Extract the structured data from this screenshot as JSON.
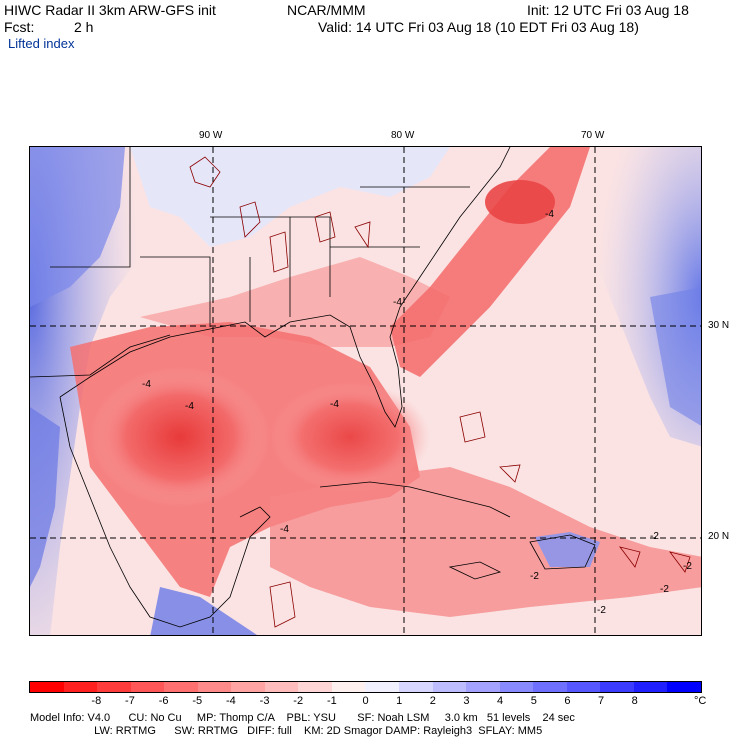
{
  "header": {
    "model_title": "HIWC Radar II 3km ARW-GFS init",
    "org": "NCAR/MMM",
    "init": "Init: 12 UTC Fri 03 Aug 18",
    "fcst_label": "Fcst:",
    "fcst_value": "2 h",
    "valid": "Valid: 14 UTC Fri 03 Aug 18 (10 EDT Fri 03 Aug 18)",
    "field_name": "Lifted index"
  },
  "map": {
    "lon_labels": [
      "90 W",
      "80 W",
      "70 W"
    ],
    "lat_labels": [
      "30 N",
      "20 N"
    ],
    "contour_labels": [
      "-4",
      "-4",
      "-4",
      "-4",
      "-4",
      "-4",
      "-2",
      "-2",
      "-2",
      "-2",
      "-2"
    ],
    "colors": {
      "ocean_neutral": "#fde0e0",
      "stable_blue": "#6f7fe8",
      "unstable_red": "#f25a5a",
      "strong_red": "#e83030"
    }
  },
  "colorbar": {
    "ticks": [
      "-8",
      "-7",
      "-6",
      "-5",
      "-4",
      "-3",
      "-2",
      "-1",
      "0",
      "1",
      "2",
      "3",
      "4",
      "5",
      "6",
      "7",
      "8"
    ],
    "unit": "°C",
    "colors": [
      "#ff0000",
      "#ff2020",
      "#ff3c3c",
      "#ff5757",
      "#ff7070",
      "#ff8a8a",
      "#ffa3a3",
      "#ffbcbc",
      "#ffd6d6",
      "#fff0f0",
      "#f0f0ff",
      "#d6d6ff",
      "#bcbcff",
      "#a3a3ff",
      "#8a8aff",
      "#7070ff",
      "#5757ff",
      "#3c3cff",
      "#2020ff",
      "#0000ff"
    ]
  },
  "footer": {
    "line1": "Model Info: V4.0      CU: No Cu     MP: Thomp C/A    PBL: YSU       SF: Noah LSM     3.0 km   51 levels    24 sec",
    "line2": "                     LW: RRTMG      SW: RRTMG   DIFF: full    KM: 2D Smagor DAMP: Rayleigh3  SFLAY: MM5"
  }
}
